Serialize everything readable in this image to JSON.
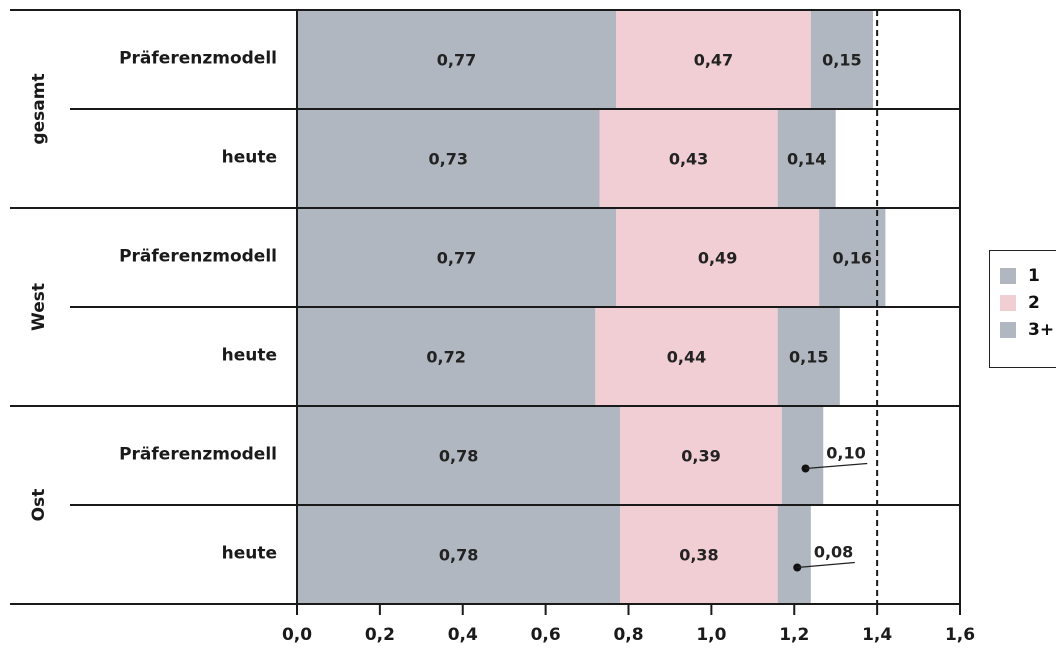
{
  "chart_data": {
    "type": "bar",
    "orientation": "horizontal",
    "stacked": true,
    "groups": [
      {
        "name": "gesamt",
        "rows": [
          {
            "label": "Präferenzmodell",
            "values": [
              0.77,
              0.47,
              0.15
            ],
            "labels": [
              "0,77",
              "0,47",
              "0,15"
            ]
          },
          {
            "label": "heute",
            "values": [
              0.73,
              0.43,
              0.14
            ],
            "labels": [
              "0,73",
              "0,43",
              "0,14"
            ]
          }
        ]
      },
      {
        "name": "West",
        "rows": [
          {
            "label": "Präferenzmodell",
            "values": [
              0.77,
              0.49,
              0.16
            ],
            "labels": [
              "0,77",
              "0,49",
              "0,16"
            ]
          },
          {
            "label": "heute",
            "values": [
              0.72,
              0.44,
              0.15
            ],
            "labels": [
              "0,72",
              "0,44",
              "0,15"
            ]
          }
        ]
      },
      {
        "name": "Ost",
        "rows": [
          {
            "label": "Präferenzmodell",
            "values": [
              0.78,
              0.39,
              0.1
            ],
            "labels": [
              "0,78",
              "0,39",
              "0,10"
            ]
          },
          {
            "label": "heute",
            "values": [
              0.78,
              0.38,
              0.08
            ],
            "labels": [
              "0,78",
              "0,38",
              "0,08"
            ]
          }
        ]
      }
    ],
    "series": [
      {
        "name": "1",
        "color": "#b1b7c0"
      },
      {
        "name": "2",
        "color": "#f1ced3"
      },
      {
        "name": "3+",
        "color": "#b1b7c0"
      }
    ],
    "xlim": [
      0.0,
      1.6
    ],
    "xticks": [
      0.0,
      0.2,
      0.4,
      0.6,
      0.8,
      1.0,
      1.2,
      1.4,
      1.6
    ],
    "xtick_labels": [
      "0,0",
      "0,2",
      "0,4",
      "0,6",
      "0,8",
      "1,0",
      "1,2",
      "1,4",
      "1,6"
    ],
    "reference_line": 1.4,
    "grid": false,
    "legend": "right"
  }
}
